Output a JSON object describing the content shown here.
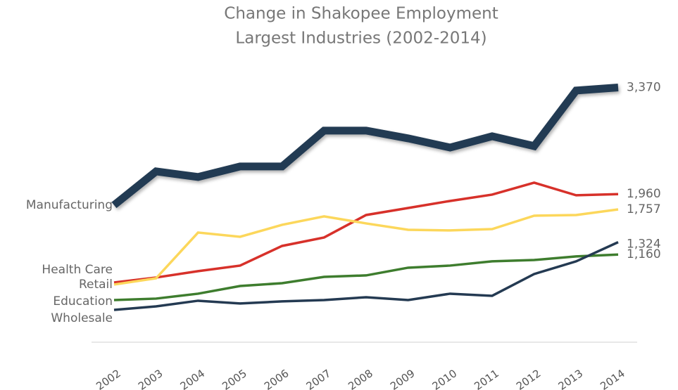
{
  "chart_data": {
    "type": "line",
    "title": "Change in Shakopee Employment",
    "subtitle": "Largest Industries (2002-2014)",
    "x": [
      2002,
      2003,
      2004,
      2005,
      2006,
      2007,
      2008,
      2009,
      2010,
      2011,
      2012,
      2013,
      2014
    ],
    "xlim": [
      2002,
      2014
    ],
    "ylim": [
      0,
      4500
    ],
    "series": [
      {
        "name": "Manufacturing",
        "color": "#243a52",
        "values": [
          1814,
          2260,
          2186,
          2325,
          2325,
          2800,
          2800,
          2697,
          2576,
          2725,
          2595,
          3330,
          3370
        ],
        "value_labels": [
          null,
          null,
          null,
          null,
          null,
          null,
          null,
          null,
          null,
          null,
          null,
          null,
          "3,370"
        ]
      },
      {
        "name": "Health Care",
        "color": "#d7312a",
        "values": [
          790,
          856,
          940,
          1014,
          1274,
          1386,
          1683,
          1776,
          1869,
          1953,
          2111,
          1944,
          1960
        ],
        "value_labels": [
          null,
          null,
          null,
          null,
          null,
          null,
          null,
          null,
          null,
          null,
          null,
          null,
          "1,960"
        ]
      },
      {
        "name": "Retail",
        "color": "#fcd75b",
        "values": [
          763,
          846,
          1451,
          1395,
          1553,
          1665,
          1572,
          1488,
          1479,
          1497,
          1674,
          1683,
          1757
        ],
        "value_labels": [
          null,
          null,
          null,
          null,
          null,
          null,
          null,
          null,
          null,
          null,
          null,
          null,
          "1,757"
        ]
      },
      {
        "name": "Education",
        "color": "#3e7d2e",
        "values": [
          558,
          577,
          642,
          744,
          781,
          865,
          884,
          986,
          1014,
          1070,
          1088,
          1135,
          1160
        ],
        "value_labels": [
          null,
          null,
          null,
          null,
          null,
          null,
          null,
          null,
          null,
          null,
          null,
          null,
          "1,160"
        ]
      },
      {
        "name": "Wholesale",
        "color": "#243a52",
        "values": [
          428,
          474,
          549,
          512,
          540,
          558,
          595,
          558,
          642,
          614,
          902,
          1070,
          1324
        ],
        "value_labels": [
          null,
          null,
          null,
          null,
          null,
          null,
          null,
          null,
          null,
          null,
          null,
          null,
          "1,324"
        ]
      }
    ]
  }
}
